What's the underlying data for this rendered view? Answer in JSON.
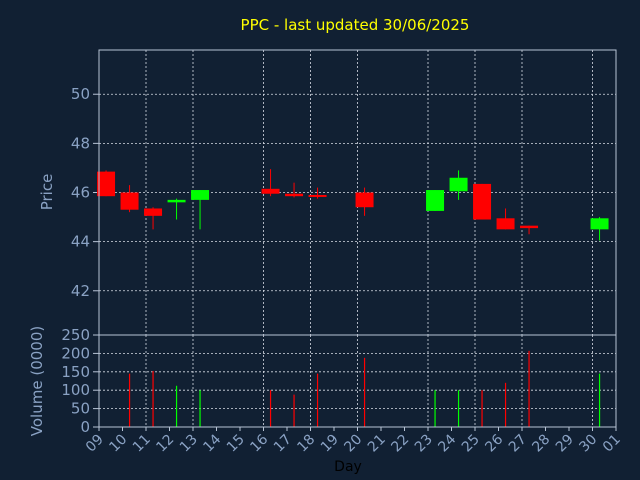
{
  "title": "PPC - last updated 30/06/2025",
  "colors": {
    "background": "#112033",
    "up": "#00ff00",
    "down": "#ff0000",
    "text": "#8aa2c4",
    "title": "#ffff00",
    "grid": "#d8dde6"
  },
  "chart_data": [
    {
      "type": "candlestick",
      "ylabel": "Price",
      "ylim": [
        40.2,
        51.8
      ],
      "yticks": [
        42,
        44,
        46,
        48,
        50
      ],
      "grid": true,
      "candles": [
        {
          "day": 9.3,
          "open": 46.85,
          "high": 46.9,
          "low": 45.85,
          "close": 45.85
        },
        {
          "day": 10.3,
          "open": 46.0,
          "high": 46.3,
          "low": 45.2,
          "close": 45.3
        },
        {
          "day": 11.3,
          "open": 45.35,
          "high": 45.4,
          "low": 44.5,
          "close": 45.05
        },
        {
          "day": 12.3,
          "open": 45.6,
          "high": 45.75,
          "low": 44.9,
          "close": 45.7
        },
        {
          "day": 13.3,
          "open": 45.7,
          "high": 46.1,
          "low": 44.5,
          "close": 46.1
        },
        {
          "day": 16.3,
          "open": 46.15,
          "high": 46.95,
          "low": 45.85,
          "close": 45.95
        },
        {
          "day": 17.3,
          "open": 45.95,
          "high": 46.4,
          "low": 45.8,
          "close": 45.85
        },
        {
          "day": 18.3,
          "open": 45.9,
          "high": 46.2,
          "low": 45.75,
          "close": 45.85
        },
        {
          "day": 20.3,
          "open": 46.0,
          "high": 46.2,
          "low": 45.05,
          "close": 45.4
        },
        {
          "day": 23.3,
          "open": 45.25,
          "high": 46.1,
          "low": 45.25,
          "close": 46.1
        },
        {
          "day": 24.3,
          "open": 46.05,
          "high": 46.9,
          "low": 45.7,
          "close": 46.6
        },
        {
          "day": 25.3,
          "open": 46.35,
          "high": 46.35,
          "low": 44.9,
          "close": 44.9
        },
        {
          "day": 26.3,
          "open": 44.95,
          "high": 45.35,
          "low": 44.5,
          "close": 44.5
        },
        {
          "day": 27.3,
          "open": 44.65,
          "high": 44.65,
          "low": 44.3,
          "close": 44.55
        },
        {
          "day": 30.3,
          "open": 44.5,
          "high": 45.0,
          "low": 44.05,
          "close": 44.95
        }
      ]
    },
    {
      "type": "bar",
      "ylabel": "Volume (0000)",
      "xlabel": "Day",
      "ylim": [
        0,
        250
      ],
      "yticks": [
        0,
        50,
        100,
        150,
        200,
        250
      ],
      "grid": true,
      "bars": [
        {
          "day": 10.3,
          "value": 145,
          "direction": "down"
        },
        {
          "day": 11.3,
          "value": 152,
          "direction": "down"
        },
        {
          "day": 12.3,
          "value": 112,
          "direction": "up"
        },
        {
          "day": 13.3,
          "value": 100,
          "direction": "up"
        },
        {
          "day": 16.3,
          "value": 100,
          "direction": "down"
        },
        {
          "day": 17.3,
          "value": 88,
          "direction": "down"
        },
        {
          "day": 18.3,
          "value": 145,
          "direction": "down"
        },
        {
          "day": 20.3,
          "value": 188,
          "direction": "down"
        },
        {
          "day": 23.3,
          "value": 100,
          "direction": "up"
        },
        {
          "day": 24.3,
          "value": 100,
          "direction": "up"
        },
        {
          "day": 25.3,
          "value": 100,
          "direction": "down"
        },
        {
          "day": 26.3,
          "value": 120,
          "direction": "down"
        },
        {
          "day": 27.3,
          "value": 207,
          "direction": "down"
        },
        {
          "day": 30.3,
          "value": 145,
          "direction": "up"
        }
      ]
    }
  ],
  "xaxis": {
    "range": [
      9,
      31
    ],
    "tick_labels": [
      "09",
      "10",
      "11",
      "12",
      "13",
      "14",
      "15",
      "16",
      "17",
      "18",
      "19",
      "20",
      "21",
      "22",
      "23",
      "24",
      "25",
      "26",
      "27",
      "28",
      "29",
      "30",
      "01"
    ],
    "grid_ticks": [
      11,
      13,
      16,
      18,
      20,
      23,
      25,
      27,
      30
    ]
  }
}
